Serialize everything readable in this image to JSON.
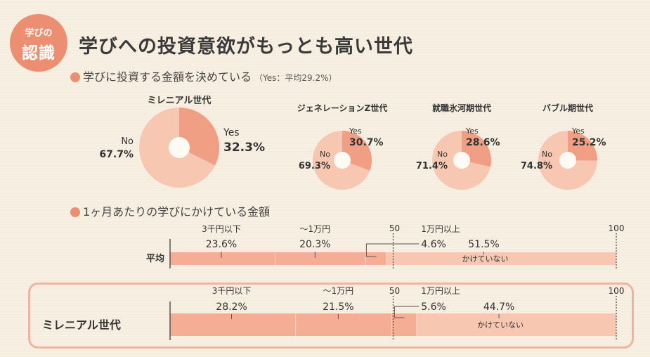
{
  "badge": {
    "line1": "学びの",
    "line2": "認識"
  },
  "title": "学びへの投資意欲がもっとも高い世代",
  "section1": {
    "label": "学びに投資する金額を決めている",
    "note": "（Yes：平均29.2%）"
  },
  "section2": {
    "label": "1ヶ月あたりの学びにかけている金額"
  },
  "colors": {
    "dark": "#ec8e72",
    "medium": "#f19f84",
    "light": "#f8c7b2",
    "band": "#f5ad95"
  },
  "chart_data": [
    {
      "type": "pie",
      "title": "学びに投資する金額を決めている",
      "series": [
        {
          "name": "ミレニアル世代",
          "slices": [
            {
              "label": "Yes",
              "value": 32.3
            },
            {
              "label": "No",
              "value": 67.7
            }
          ]
        },
        {
          "name": "ジェネレーションZ世代",
          "slices": [
            {
              "label": "Yes",
              "value": 30.7
            },
            {
              "label": "No",
              "value": 69.3
            }
          ]
        },
        {
          "name": "就職氷河期世代",
          "slices": [
            {
              "label": "Yes",
              "value": 28.6
            },
            {
              "label": "No",
              "value": 71.4
            }
          ]
        },
        {
          "name": "バブル期世代",
          "slices": [
            {
              "label": "Yes",
              "value": 25.2
            },
            {
              "label": "No",
              "value": 74.8
            }
          ]
        }
      ]
    },
    {
      "type": "bar",
      "orientation": "horizontal-stacked",
      "title": "1ヶ月あたりの学びにかけている金額",
      "categories": [
        "3千円以下",
        "〜1万円",
        "1万円以上",
        "かけていない"
      ],
      "xlim": [
        0,
        100
      ],
      "ticks": [
        "50",
        "100"
      ],
      "rows": [
        {
          "name": "平均",
          "values": [
            23.6,
            20.3,
            4.6,
            51.5
          ]
        },
        {
          "name": "ミレニアル世代",
          "values": [
            28.2,
            21.5,
            5.6,
            44.7
          ]
        }
      ]
    }
  ]
}
